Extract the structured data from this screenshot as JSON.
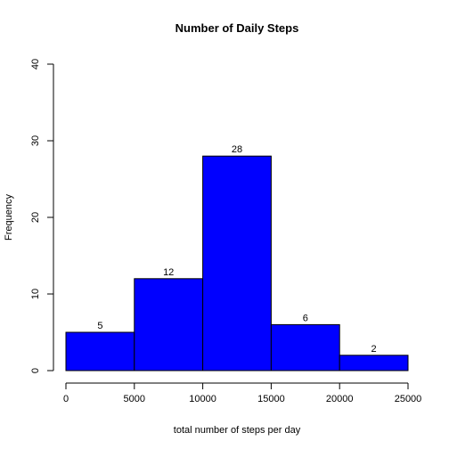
{
  "chart_data": {
    "type": "histogram",
    "title": "Number of Daily Steps",
    "xlabel": "total number of steps per day",
    "ylabel": "Frequency",
    "bins": [
      {
        "start": 0,
        "end": 5000,
        "count": 5
      },
      {
        "start": 5000,
        "end": 10000,
        "count": 12
      },
      {
        "start": 10000,
        "end": 15000,
        "count": 28
      },
      {
        "start": 15000,
        "end": 20000,
        "count": 6
      },
      {
        "start": 20000,
        "end": 25000,
        "count": 2
      }
    ],
    "value_labels": [
      "5",
      "12",
      "28",
      "6",
      "2"
    ],
    "xlim": [
      0,
      25000
    ],
    "ylim": [
      0,
      40
    ],
    "x_ticks": [
      0,
      5000,
      10000,
      15000,
      20000,
      25000
    ],
    "x_tick_labels": [
      "0",
      "5000",
      "10000",
      "15000",
      "20000",
      "25000"
    ],
    "y_ticks": [
      0,
      10,
      20,
      30,
      40
    ],
    "y_tick_labels": [
      "0",
      "10",
      "20",
      "30",
      "40"
    ],
    "bar_color": "#0000FF",
    "border_color": "#000000",
    "grid": false
  }
}
